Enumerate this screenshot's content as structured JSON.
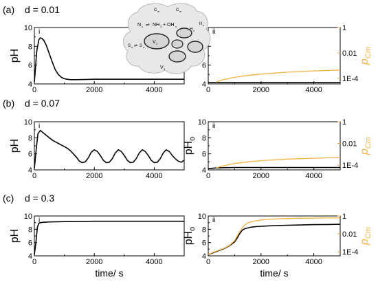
{
  "colors": {
    "ph": "#000000",
    "pcm": "#f5b040",
    "cell": "#e8e8e8",
    "cell_edge": "#b8b8b8"
  },
  "rows": [
    {
      "label": "(a)",
      "d_text": "d = 0.01"
    },
    {
      "label": "(b)",
      "d_text": "d = 0.07"
    },
    {
      "label": "(c)",
      "d_text": "d = 0.3"
    }
  ],
  "left_sublabel": "i",
  "right_sublabel": "ii",
  "left_ylabel": "pH",
  "right_ylabel_main": "pH",
  "right_ylabel_sub": "o",
  "right2_ylabel_main": "p",
  "right2_ylabel_sub": "Cm",
  "xlabel": "time/ s",
  "inset": {
    "labels": [
      "C",
      "m",
      "C",
      "m",
      "N",
      "o",
      "NH",
      "3",
      "+ OH",
      "o",
      "H",
      "s",
      "H",
      "o",
      "S",
      "o",
      "S",
      "o",
      "V",
      "2",
      "V",
      "3"
    ]
  },
  "chart_data": [
    {
      "id": "a-i",
      "type": "line",
      "xlim": [
        0,
        5000
      ],
      "ylim": [
        4,
        10
      ],
      "xticks": [
        "0",
        "2000",
        "4000"
      ],
      "yticks": [
        "4",
        "6",
        "8",
        "10"
      ],
      "series": [
        {
          "name": "",
          "color": "#000000",
          "x": [
            0,
            80,
            150,
            200,
            250,
            320,
            400,
            500,
            600,
            700,
            800,
            900,
            1000,
            1100,
            1200,
            1400,
            2000,
            3000,
            4000,
            5000
          ],
          "y": [
            4.2,
            7.5,
            8.7,
            8.9,
            8.85,
            8.6,
            8.1,
            7.2,
            6.3,
            5.5,
            5.0,
            4.7,
            4.55,
            4.5,
            4.45,
            4.45,
            4.5,
            4.5,
            4.5,
            4.5
          ]
        }
      ]
    },
    {
      "id": "a-ii",
      "type": "line",
      "xlim": [
        0,
        5000
      ],
      "ylim": [
        4,
        10
      ],
      "xticks": [
        "0",
        "2000",
        "4000"
      ],
      "yticks": [
        "4",
        "6",
        "8",
        "10"
      ],
      "y2ticks": [
        "1",
        "0.01",
        "1E-4"
      ],
      "series": [
        {
          "name": "",
          "color": "#000000",
          "x": [
            0,
            5000
          ],
          "y": [
            4.15,
            4.15
          ]
        },
        {
          "name": "",
          "color": "#f5b040",
          "x": [
            300,
            500,
            1000,
            1500,
            2000,
            2500,
            3000,
            3500,
            4000,
            4500,
            5000
          ],
          "y": [
            4.2,
            4.4,
            4.7,
            4.9,
            5.05,
            5.15,
            5.25,
            5.32,
            5.38,
            5.43,
            5.48
          ]
        }
      ]
    },
    {
      "id": "b-i",
      "type": "line",
      "xlim": [
        0,
        5000
      ],
      "ylim": [
        4,
        10
      ],
      "xticks": [
        "0",
        "2000",
        "4000"
      ],
      "yticks": [
        "4",
        "6",
        "8",
        "10"
      ],
      "series": [
        {
          "name": "",
          "color": "#000000",
          "x": [
            0,
            60,
            120,
            200,
            300,
            400,
            500,
            600,
            700,
            800,
            900,
            1000,
            1100,
            1200,
            1300,
            1400,
            1500,
            1600,
            1700,
            1800,
            1900,
            2000,
            2100,
            2200,
            2300,
            2400,
            2500,
            2600,
            2700,
            2800,
            2900,
            3000,
            3100,
            3200,
            3300,
            3400,
            3500,
            3600,
            3700,
            3800,
            3900,
            4000,
            4100,
            4200,
            4300,
            4400,
            4500,
            4600,
            4700,
            4800,
            4900,
            5000
          ],
          "y": [
            4.2,
            6.5,
            8.5,
            8.9,
            8.6,
            8.3,
            8.0,
            7.7,
            7.5,
            7.3,
            7.1,
            6.9,
            6.7,
            6.4,
            6.0,
            5.6,
            5.1,
            4.9,
            5.0,
            5.5,
            6.2,
            6.5,
            6.3,
            5.8,
            5.2,
            4.9,
            4.95,
            5.4,
            6.1,
            6.5,
            6.3,
            5.8,
            5.2,
            4.9,
            4.95,
            5.4,
            6.1,
            6.5,
            6.3,
            5.8,
            5.2,
            4.9,
            4.95,
            5.4,
            6.1,
            6.5,
            6.3,
            5.8,
            5.4,
            5.1,
            4.95,
            5.2
          ]
        }
      ]
    },
    {
      "id": "b-ii",
      "type": "line",
      "xlim": [
        0,
        5000
      ],
      "ylim": [
        4,
        10
      ],
      "xticks": [
        "0",
        "2000",
        "4000"
      ],
      "yticks": [
        "4",
        "6",
        "8",
        "10"
      ],
      "y2ticks": [
        "1",
        "0.01",
        "1E-4"
      ],
      "series": [
        {
          "name": "",
          "color": "#000000",
          "x": [
            0,
            300,
            1000,
            5000
          ],
          "y": [
            4.15,
            4.25,
            4.3,
            4.3
          ]
        },
        {
          "name": "",
          "color": "#f5b040",
          "x": [
            300,
            500,
            1000,
            1500,
            2000,
            2500,
            3000,
            3500,
            4000,
            4500,
            5000
          ],
          "y": [
            4.25,
            4.45,
            4.8,
            5.0,
            5.15,
            5.25,
            5.35,
            5.4,
            5.45,
            5.5,
            5.55
          ]
        }
      ]
    },
    {
      "id": "c-i",
      "type": "line",
      "xlim": [
        0,
        5000
      ],
      "ylim": [
        4,
        10
      ],
      "xticks": [
        "0",
        "2000",
        "4000"
      ],
      "yticks": [
        "4",
        "6",
        "8",
        "10"
      ],
      "series": [
        {
          "name": "",
          "color": "#000000",
          "x": [
            0,
            50,
            100,
            150,
            200,
            300,
            500,
            1000,
            2000,
            3000,
            4000,
            5000
          ],
          "y": [
            4.2,
            6.0,
            8.3,
            8.9,
            9.0,
            9.05,
            9.1,
            9.15,
            9.2,
            9.2,
            9.2,
            9.2
          ]
        }
      ]
    },
    {
      "id": "c-ii",
      "type": "line",
      "xlim": [
        0,
        5000
      ],
      "ylim": [
        4,
        10
      ],
      "xticks": [
        "0",
        "2000",
        "4000"
      ],
      "yticks": [
        "4",
        "6",
        "8",
        "10"
      ],
      "y2ticks": [
        "1",
        "0.01",
        "1E-4"
      ],
      "series": [
        {
          "name": "",
          "color": "#000000",
          "x": [
            0,
            200,
            400,
            600,
            800,
            1000,
            1100,
            1200,
            1300,
            1400,
            1500,
            1600,
            1800,
            2000,
            2500,
            3000,
            3500,
            4000,
            4500,
            5000
          ],
          "y": [
            4.2,
            4.5,
            4.8,
            5.1,
            5.5,
            6.1,
            6.7,
            7.4,
            7.9,
            8.1,
            8.2,
            8.3,
            8.4,
            8.45,
            8.55,
            8.6,
            8.65,
            8.7,
            8.72,
            8.75
          ]
        },
        {
          "name": "",
          "color": "#f5b040",
          "x": [
            0,
            200,
            400,
            600,
            800,
            1000,
            1100,
            1200,
            1300,
            1400,
            1500,
            1700,
            2000,
            2500,
            3000,
            3500,
            4000,
            4500,
            5000
          ],
          "y": [
            4.2,
            4.55,
            4.85,
            5.15,
            5.55,
            6.3,
            7.0,
            7.7,
            8.3,
            8.7,
            8.95,
            9.2,
            9.4,
            9.55,
            9.62,
            9.66,
            9.68,
            9.7,
            9.7
          ]
        }
      ]
    }
  ]
}
